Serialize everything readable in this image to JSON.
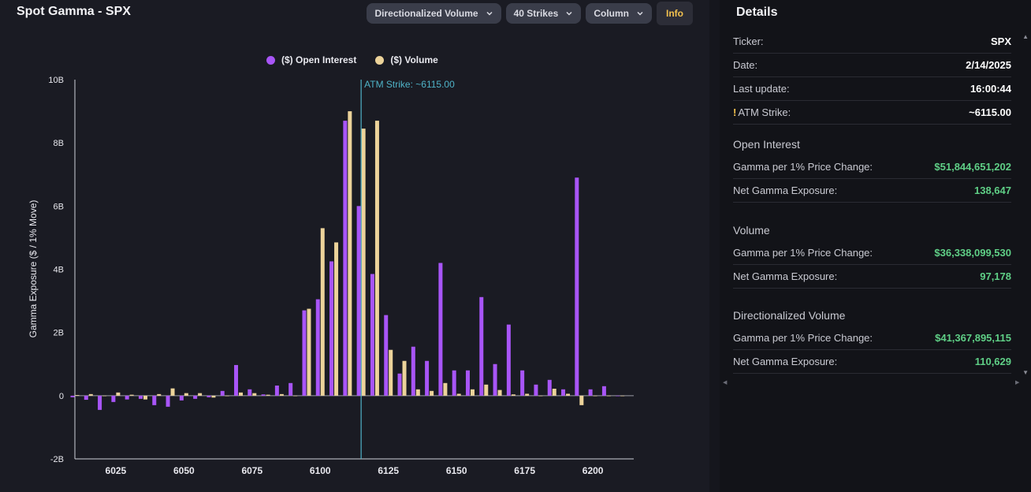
{
  "header": {
    "title": "Spot Gamma - SPX",
    "dropdowns": [
      "Directionalized Volume",
      "40 Strikes",
      "Column"
    ],
    "info_label": "Info"
  },
  "legend": [
    "($) Open Interest",
    "($) Volume"
  ],
  "colors": {
    "open_interest": "#a855f7",
    "volume": "#ecd39a",
    "atm_line": "#4fb3c8",
    "positive": "#5fcf86"
  },
  "chart_data": {
    "type": "bar",
    "ylabel": "Gamma Exposure ($ / 1% Move)",
    "ylim": [
      -2,
      10
    ],
    "yticks": [
      "10B",
      "8B",
      "6B",
      "4B",
      "2B",
      "0",
      "-2B"
    ],
    "ytick_values": [
      10,
      8,
      6,
      4,
      2,
      0,
      -2
    ],
    "xlim": [
      6010,
      6215
    ],
    "xticks": [
      6025,
      6050,
      6075,
      6100,
      6125,
      6150,
      6175,
      6200
    ],
    "atm_strike": 6115,
    "atm_label": "ATM Strike: ~6115.00",
    "strikes": [
      6010,
      6015,
      6020,
      6025,
      6030,
      6035,
      6040,
      6045,
      6050,
      6055,
      6060,
      6065,
      6070,
      6075,
      6080,
      6085,
      6090,
      6095,
      6100,
      6105,
      6110,
      6115,
      6120,
      6125,
      6130,
      6135,
      6140,
      6145,
      6150,
      6155,
      6160,
      6165,
      6170,
      6175,
      6180,
      6185,
      6190,
      6195,
      6200,
      6205,
      6210
    ],
    "series": [
      {
        "name": "($) Open Interest",
        "values": [
          -0.05,
          -0.13,
          -0.45,
          -0.2,
          -0.12,
          -0.1,
          -0.3,
          -0.35,
          -0.15,
          -0.1,
          -0.05,
          0.15,
          0.97,
          0.2,
          0.04,
          0.32,
          0.4,
          2.7,
          3.05,
          4.25,
          8.7,
          6.0,
          3.85,
          2.55,
          0.7,
          1.55,
          1.1,
          4.2,
          0.8,
          0.8,
          3.12,
          1.0,
          2.25,
          0.8,
          0.35,
          0.5,
          0.2,
          6.9,
          0.2,
          0.3,
          0.0
        ]
      },
      {
        "name": "($) Volume",
        "values": [
          0.02,
          0.05,
          0.0,
          0.1,
          0.03,
          -0.12,
          0.05,
          0.23,
          0.08,
          0.08,
          -0.06,
          0.0,
          0.1,
          0.08,
          0.03,
          0.05,
          0.0,
          2.75,
          5.3,
          4.85,
          9.0,
          8.45,
          8.7,
          1.45,
          1.1,
          0.2,
          0.15,
          0.4,
          0.06,
          0.2,
          0.35,
          0.18,
          0.04,
          0.06,
          0.0,
          0.22,
          0.06,
          -0.3,
          0.0,
          0.0,
          0.0
        ]
      }
    ]
  },
  "details": {
    "title": "Details",
    "rows": [
      {
        "k": "Ticker:",
        "v": "SPX"
      },
      {
        "k": "Date:",
        "v": "2/14/2025"
      },
      {
        "k": "Last update:",
        "v": "16:00:44"
      },
      {
        "k": "ATM Strike:",
        "v": "~6115.00",
        "warn": "!"
      }
    ],
    "oi": {
      "title": "Open Interest",
      "gamma_label": "Gamma per 1% Price Change:",
      "gamma": "$51,844,651,202",
      "net_label": "Net Gamma Exposure:",
      "net": "138,647"
    },
    "vol": {
      "title": "Volume",
      "gamma_label": "Gamma per 1% Price Change:",
      "gamma": "$36,338,099,530",
      "net_label": "Net Gamma Exposure:",
      "net": "97,178"
    },
    "dvol": {
      "title": "Directionalized Volume",
      "gamma_label": "Gamma per 1% Price Change:",
      "gamma": "$41,367,895,115",
      "net_label": "Net Gamma Exposure:",
      "net": "110,629"
    }
  }
}
